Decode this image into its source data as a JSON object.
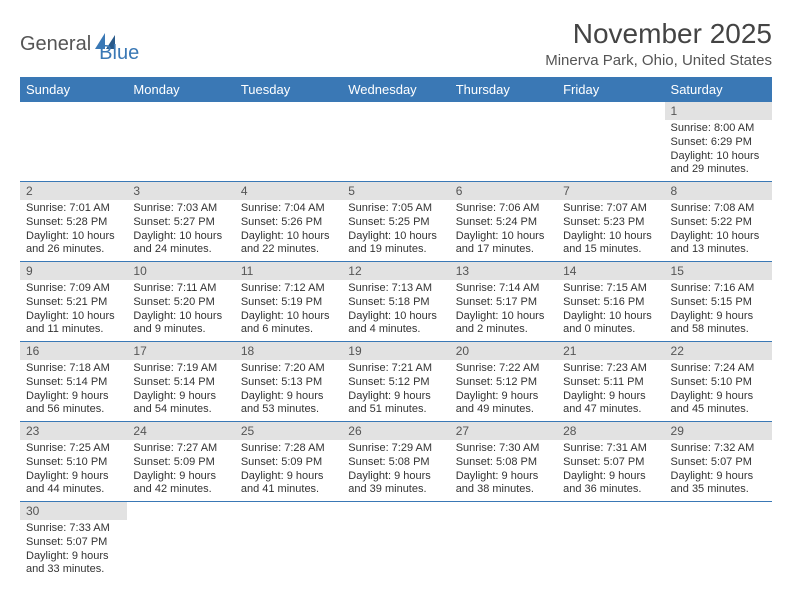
{
  "logo": {
    "text1": "General",
    "text2": "Blue"
  },
  "title": "November 2025",
  "location": "Minerva Park, Ohio, United States",
  "colors": {
    "header_bg": "#3a78b5",
    "daynum_bg": "#e2e2e2",
    "border": "#3a78b5"
  },
  "weekdays": [
    "Sunday",
    "Monday",
    "Tuesday",
    "Wednesday",
    "Thursday",
    "Friday",
    "Saturday"
  ],
  "weeks": [
    [
      null,
      null,
      null,
      null,
      null,
      null,
      {
        "n": "1",
        "sunrise": "Sunrise: 8:00 AM",
        "sunset": "Sunset: 6:29 PM",
        "day1": "Daylight: 10 hours",
        "day2": "and 29 minutes."
      }
    ],
    [
      {
        "n": "2",
        "sunrise": "Sunrise: 7:01 AM",
        "sunset": "Sunset: 5:28 PM",
        "day1": "Daylight: 10 hours",
        "day2": "and 26 minutes."
      },
      {
        "n": "3",
        "sunrise": "Sunrise: 7:03 AM",
        "sunset": "Sunset: 5:27 PM",
        "day1": "Daylight: 10 hours",
        "day2": "and 24 minutes."
      },
      {
        "n": "4",
        "sunrise": "Sunrise: 7:04 AM",
        "sunset": "Sunset: 5:26 PM",
        "day1": "Daylight: 10 hours",
        "day2": "and 22 minutes."
      },
      {
        "n": "5",
        "sunrise": "Sunrise: 7:05 AM",
        "sunset": "Sunset: 5:25 PM",
        "day1": "Daylight: 10 hours",
        "day2": "and 19 minutes."
      },
      {
        "n": "6",
        "sunrise": "Sunrise: 7:06 AM",
        "sunset": "Sunset: 5:24 PM",
        "day1": "Daylight: 10 hours",
        "day2": "and 17 minutes."
      },
      {
        "n": "7",
        "sunrise": "Sunrise: 7:07 AM",
        "sunset": "Sunset: 5:23 PM",
        "day1": "Daylight: 10 hours",
        "day2": "and 15 minutes."
      },
      {
        "n": "8",
        "sunrise": "Sunrise: 7:08 AM",
        "sunset": "Sunset: 5:22 PM",
        "day1": "Daylight: 10 hours",
        "day2": "and 13 minutes."
      }
    ],
    [
      {
        "n": "9",
        "sunrise": "Sunrise: 7:09 AM",
        "sunset": "Sunset: 5:21 PM",
        "day1": "Daylight: 10 hours",
        "day2": "and 11 minutes."
      },
      {
        "n": "10",
        "sunrise": "Sunrise: 7:11 AM",
        "sunset": "Sunset: 5:20 PM",
        "day1": "Daylight: 10 hours",
        "day2": "and 9 minutes."
      },
      {
        "n": "11",
        "sunrise": "Sunrise: 7:12 AM",
        "sunset": "Sunset: 5:19 PM",
        "day1": "Daylight: 10 hours",
        "day2": "and 6 minutes."
      },
      {
        "n": "12",
        "sunrise": "Sunrise: 7:13 AM",
        "sunset": "Sunset: 5:18 PM",
        "day1": "Daylight: 10 hours",
        "day2": "and 4 minutes."
      },
      {
        "n": "13",
        "sunrise": "Sunrise: 7:14 AM",
        "sunset": "Sunset: 5:17 PM",
        "day1": "Daylight: 10 hours",
        "day2": "and 2 minutes."
      },
      {
        "n": "14",
        "sunrise": "Sunrise: 7:15 AM",
        "sunset": "Sunset: 5:16 PM",
        "day1": "Daylight: 10 hours",
        "day2": "and 0 minutes."
      },
      {
        "n": "15",
        "sunrise": "Sunrise: 7:16 AM",
        "sunset": "Sunset: 5:15 PM",
        "day1": "Daylight: 9 hours",
        "day2": "and 58 minutes."
      }
    ],
    [
      {
        "n": "16",
        "sunrise": "Sunrise: 7:18 AM",
        "sunset": "Sunset: 5:14 PM",
        "day1": "Daylight: 9 hours",
        "day2": "and 56 minutes."
      },
      {
        "n": "17",
        "sunrise": "Sunrise: 7:19 AM",
        "sunset": "Sunset: 5:14 PM",
        "day1": "Daylight: 9 hours",
        "day2": "and 54 minutes."
      },
      {
        "n": "18",
        "sunrise": "Sunrise: 7:20 AM",
        "sunset": "Sunset: 5:13 PM",
        "day1": "Daylight: 9 hours",
        "day2": "and 53 minutes."
      },
      {
        "n": "19",
        "sunrise": "Sunrise: 7:21 AM",
        "sunset": "Sunset: 5:12 PM",
        "day1": "Daylight: 9 hours",
        "day2": "and 51 minutes."
      },
      {
        "n": "20",
        "sunrise": "Sunrise: 7:22 AM",
        "sunset": "Sunset: 5:12 PM",
        "day1": "Daylight: 9 hours",
        "day2": "and 49 minutes."
      },
      {
        "n": "21",
        "sunrise": "Sunrise: 7:23 AM",
        "sunset": "Sunset: 5:11 PM",
        "day1": "Daylight: 9 hours",
        "day2": "and 47 minutes."
      },
      {
        "n": "22",
        "sunrise": "Sunrise: 7:24 AM",
        "sunset": "Sunset: 5:10 PM",
        "day1": "Daylight: 9 hours",
        "day2": "and 45 minutes."
      }
    ],
    [
      {
        "n": "23",
        "sunrise": "Sunrise: 7:25 AM",
        "sunset": "Sunset: 5:10 PM",
        "day1": "Daylight: 9 hours",
        "day2": "and 44 minutes."
      },
      {
        "n": "24",
        "sunrise": "Sunrise: 7:27 AM",
        "sunset": "Sunset: 5:09 PM",
        "day1": "Daylight: 9 hours",
        "day2": "and 42 minutes."
      },
      {
        "n": "25",
        "sunrise": "Sunrise: 7:28 AM",
        "sunset": "Sunset: 5:09 PM",
        "day1": "Daylight: 9 hours",
        "day2": "and 41 minutes."
      },
      {
        "n": "26",
        "sunrise": "Sunrise: 7:29 AM",
        "sunset": "Sunset: 5:08 PM",
        "day1": "Daylight: 9 hours",
        "day2": "and 39 minutes."
      },
      {
        "n": "27",
        "sunrise": "Sunrise: 7:30 AM",
        "sunset": "Sunset: 5:08 PM",
        "day1": "Daylight: 9 hours",
        "day2": "and 38 minutes."
      },
      {
        "n": "28",
        "sunrise": "Sunrise: 7:31 AM",
        "sunset": "Sunset: 5:07 PM",
        "day1": "Daylight: 9 hours",
        "day2": "and 36 minutes."
      },
      {
        "n": "29",
        "sunrise": "Sunrise: 7:32 AM",
        "sunset": "Sunset: 5:07 PM",
        "day1": "Daylight: 9 hours",
        "day2": "and 35 minutes."
      }
    ],
    [
      {
        "n": "30",
        "sunrise": "Sunrise: 7:33 AM",
        "sunset": "Sunset: 5:07 PM",
        "day1": "Daylight: 9 hours",
        "day2": "and 33 minutes."
      },
      null,
      null,
      null,
      null,
      null,
      null
    ]
  ]
}
